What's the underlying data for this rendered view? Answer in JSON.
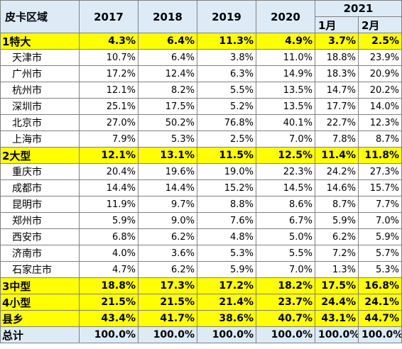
{
  "header": {
    "region": "皮卡区域",
    "years": [
      "2017",
      "2018",
      "2019",
      "2020"
    ],
    "year_2021": "2021",
    "months": [
      "1月",
      "2月"
    ]
  },
  "rows": [
    {
      "type": "group",
      "name": "1特大",
      "values": [
        "4.3%",
        "6.4%",
        "11.3%",
        "4.9%",
        "3.7%",
        "2.5%"
      ]
    },
    {
      "type": "city",
      "name": "天津市",
      "values": [
        "10.7%",
        "6.4%",
        "3.8%",
        "11.0%",
        "18.8%",
        "23.9%"
      ]
    },
    {
      "type": "city",
      "name": "广州市",
      "values": [
        "17.2%",
        "12.4%",
        "6.3%",
        "14.9%",
        "18.3%",
        "20.9%"
      ]
    },
    {
      "type": "city",
      "name": "杭州市",
      "values": [
        "12.1%",
        "8.2%",
        "5.5%",
        "13.5%",
        "14.7%",
        "20.2%"
      ]
    },
    {
      "type": "city",
      "name": "深圳市",
      "values": [
        "25.1%",
        "17.5%",
        "5.2%",
        "13.5%",
        "17.7%",
        "14.0%"
      ]
    },
    {
      "type": "city",
      "name": "北京市",
      "values": [
        "27.0%",
        "50.2%",
        "76.8%",
        "40.1%",
        "22.7%",
        "12.3%"
      ]
    },
    {
      "type": "city",
      "name": "上海市",
      "values": [
        "7.9%",
        "5.3%",
        "2.5%",
        "7.0%",
        "7.8%",
        "8.7%"
      ]
    },
    {
      "type": "group",
      "name": "2大型",
      "values": [
        "12.1%",
        "13.1%",
        "11.5%",
        "12.5%",
        "11.4%",
        "11.8%"
      ]
    },
    {
      "type": "city",
      "name": "重庆市",
      "values": [
        "20.4%",
        "19.6%",
        "19.0%",
        "22.3%",
        "24.2%",
        "27.3%"
      ]
    },
    {
      "type": "city",
      "name": "成都市",
      "values": [
        "14.4%",
        "14.4%",
        "15.2%",
        "14.5%",
        "14.6%",
        "15.7%"
      ]
    },
    {
      "type": "city",
      "name": "昆明市",
      "values": [
        "11.9%",
        "9.7%",
        "8.8%",
        "8.6%",
        "8.7%",
        "7.7%"
      ]
    },
    {
      "type": "city",
      "name": "郑州市",
      "values": [
        "5.9%",
        "9.0%",
        "7.6%",
        "6.7%",
        "5.9%",
        "7.0%"
      ]
    },
    {
      "type": "city",
      "name": "西安市",
      "values": [
        "6.8%",
        "6.2%",
        "4.8%",
        "5.0%",
        "6.2%",
        "5.9%"
      ]
    },
    {
      "type": "city",
      "name": "济南市",
      "values": [
        "4.0%",
        "3.6%",
        "5.3%",
        "5.5%",
        "7.2%",
        "5.7%"
      ]
    },
    {
      "type": "city",
      "name": "石家庄市",
      "values": [
        "4.7%",
        "6.2%",
        "5.9%",
        "7.0%",
        "1.3%",
        "5.3%"
      ]
    },
    {
      "type": "group",
      "name": "3中型",
      "values": [
        "18.8%",
        "17.3%",
        "17.2%",
        "18.2%",
        "17.5%",
        "16.8%"
      ]
    },
    {
      "type": "group",
      "name": "4小型",
      "values": [
        "21.5%",
        "21.5%",
        "21.4%",
        "23.7%",
        "24.4%",
        "24.1%"
      ]
    },
    {
      "type": "group",
      "name": "县乡",
      "values": [
        "43.4%",
        "41.7%",
        "38.6%",
        "40.7%",
        "43.1%",
        "44.7%"
      ]
    },
    {
      "type": "total",
      "name": "总计",
      "values": [
        "100.0%",
        "100.0%",
        "100.0%",
        "100.0%",
        "100.0%",
        "100.0%"
      ]
    }
  ]
}
